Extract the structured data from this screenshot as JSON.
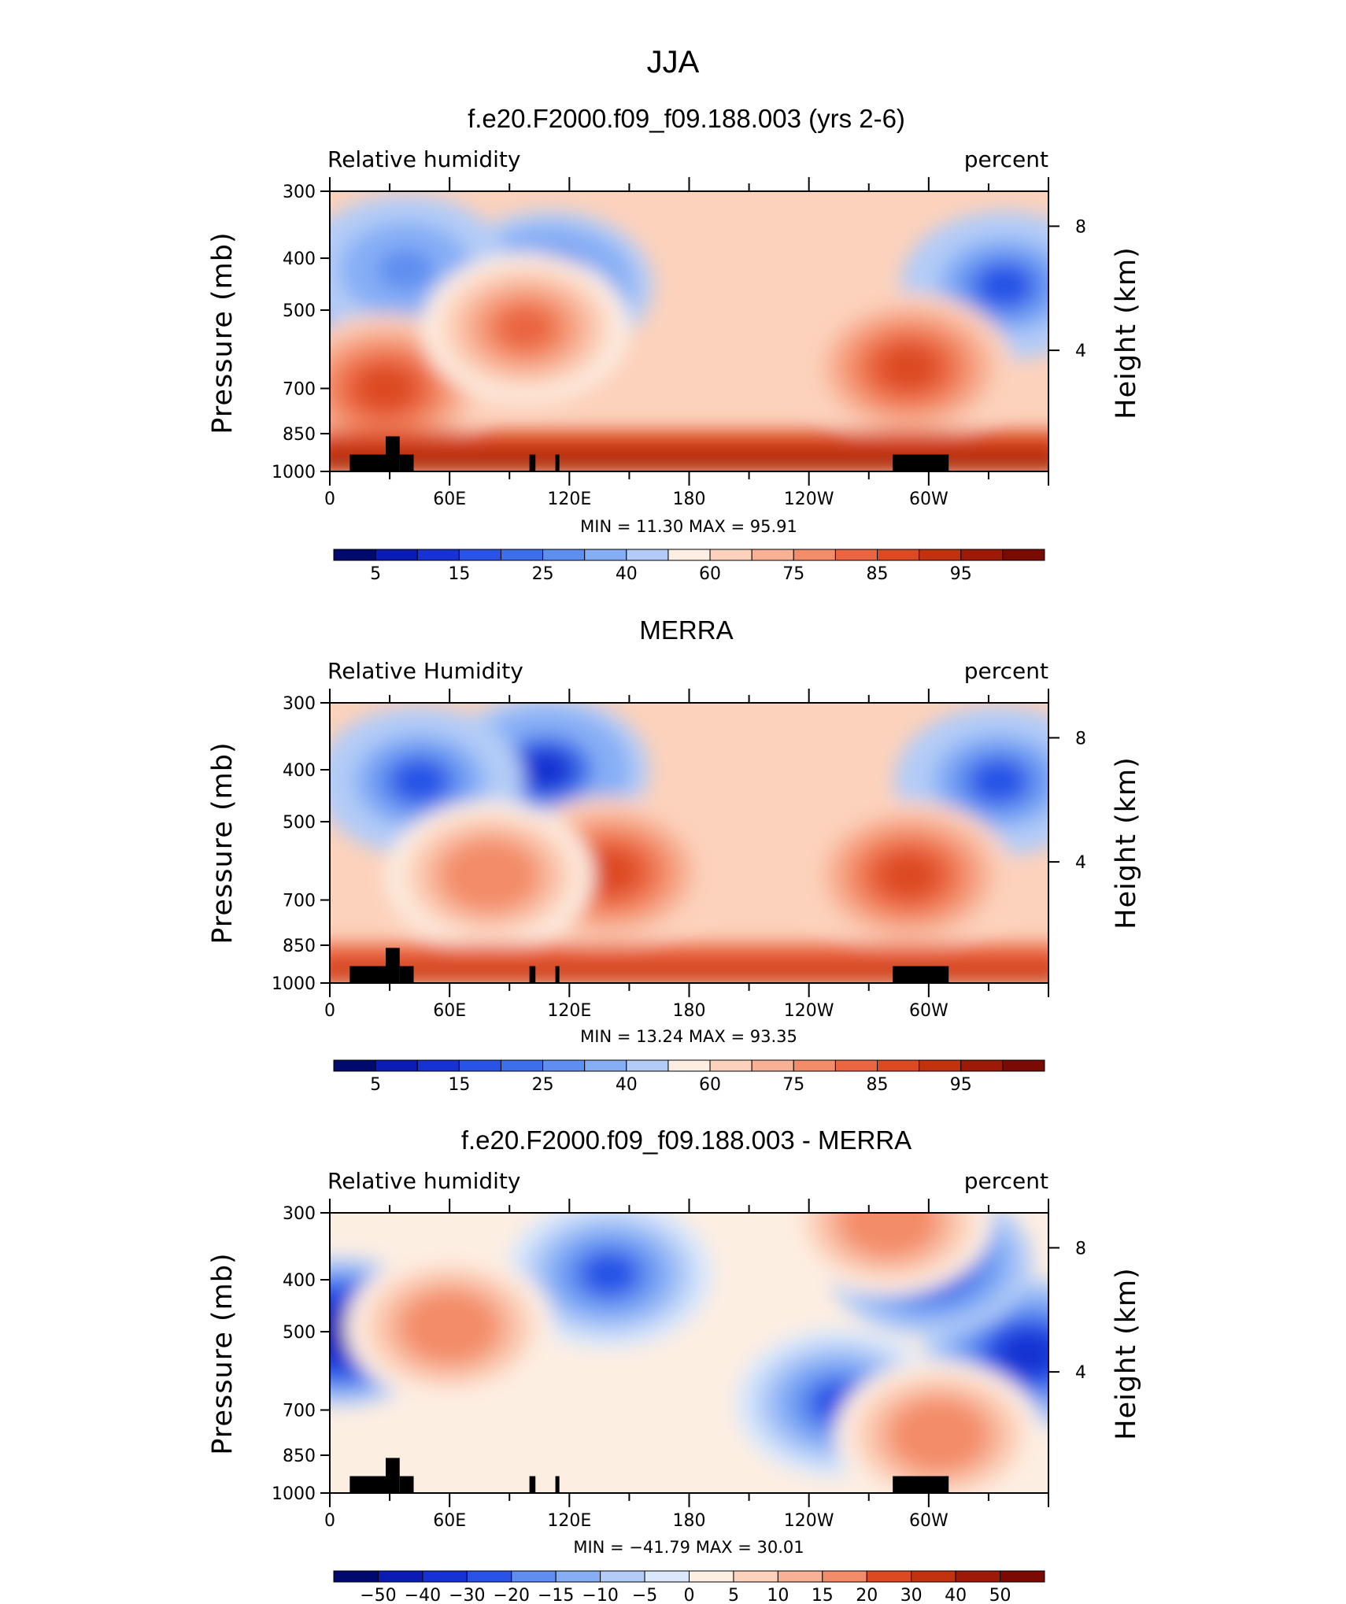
{
  "figure": {
    "title": "JJA",
    "colors": {
      "cold": [
        "#000a6e",
        "#0a1cb4",
        "#1732d2",
        "#2853e6",
        "#3e6fea",
        "#5e8ef0",
        "#86aef5",
        "#b3ccf7",
        "#dbe8fb"
      ],
      "warm": [
        "#fdeee2",
        "#fcd2bc",
        "#f8b195",
        "#f38c68",
        "#ea6540",
        "#dc4a22",
        "#c2320f",
        "#9c1a06",
        "#7a0a02"
      ]
    }
  },
  "chart_data": [
    {
      "type": "heatmap",
      "title": "f.e20.F2000.f09_f09.188.003 (yrs 2-6)",
      "left_label": "Relative  humidity",
      "right_label": "percent",
      "ylabel": "Pressure (mb)",
      "ylabel_right": "Height (km)",
      "x_ticks": [
        "0",
        "60E",
        "120E",
        "180",
        "120W",
        "60W"
      ],
      "y_ticks": [
        "300",
        "400",
        "500",
        "700",
        "850",
        "1000"
      ],
      "y_ticks_right": [
        "8",
        "4"
      ],
      "ylim": [
        1000,
        300
      ],
      "min_label": "MIN =   11.30   MAX =   95.91",
      "min": 11.3,
      "max": 95.91,
      "colorbar_labels": [
        "5",
        "15",
        "25",
        "40",
        "60",
        "75",
        "85",
        "95"
      ],
      "colorbar_levels": [
        5,
        10,
        15,
        20,
        25,
        30,
        40,
        50,
        60,
        65,
        70,
        75,
        80,
        85,
        90,
        95
      ],
      "features": [
        {
          "kind": "blob",
          "lon": 110,
          "p": 450,
          "value": 15
        },
        {
          "kind": "blob",
          "lon": 338,
          "p": 450,
          "value": 20
        },
        {
          "kind": "blob",
          "lon": 2,
          "p": 470,
          "value": 25
        },
        {
          "kind": "blob",
          "lon": 38,
          "p": 420,
          "value": 30
        },
        {
          "kind": "blob",
          "lon": 28,
          "p": 700,
          "value": 85
        },
        {
          "kind": "blob",
          "lon": 98,
          "p": 540,
          "value": 80
        },
        {
          "kind": "blob",
          "lon": 290,
          "p": 640,
          "value": 85
        },
        {
          "kind": "band",
          "p": 930,
          "value": 92
        }
      ]
    },
    {
      "type": "heatmap",
      "title": "MERRA",
      "left_label": "Relative  Humidity",
      "right_label": "percent",
      "ylabel": "Pressure (mb)",
      "ylabel_right": "Height (km)",
      "x_ticks": [
        "0",
        "60E",
        "120E",
        "180",
        "120W",
        "60W"
      ],
      "y_ticks": [
        "300",
        "400",
        "500",
        "700",
        "850",
        "1000"
      ],
      "y_ticks_right": [
        "8",
        "4"
      ],
      "ylim": [
        1000,
        300
      ],
      "min_label": "MIN =   13.24   MAX =   93.35",
      "min": 13.24,
      "max": 93.35,
      "colorbar_labels": [
        "5",
        "15",
        "25",
        "40",
        "60",
        "75",
        "85",
        "95"
      ],
      "colorbar_levels": [
        5,
        10,
        15,
        20,
        25,
        30,
        40,
        50,
        60,
        65,
        70,
        75,
        80,
        85,
        90,
        95
      ],
      "features": [
        {
          "kind": "blob",
          "lon": 108,
          "p": 400,
          "value": 15
        },
        {
          "kind": "blob",
          "lon": 335,
          "p": 420,
          "value": 20
        },
        {
          "kind": "blob",
          "lon": 45,
          "p": 420,
          "value": 20
        },
        {
          "kind": "blob",
          "lon": 140,
          "p": 620,
          "value": 85
        },
        {
          "kind": "blob",
          "lon": 80,
          "p": 630,
          "value": 75
        },
        {
          "kind": "blob",
          "lon": 290,
          "p": 630,
          "value": 85
        },
        {
          "kind": "band",
          "p": 935,
          "value": 90
        }
      ]
    },
    {
      "type": "heatmap",
      "title": "f.e20.F2000.f09_f09.188.003 - MERRA",
      "left_label": "Relative  humidity",
      "right_label": "percent",
      "ylabel": "Pressure (mb)",
      "ylabel_right": "Height (km)",
      "x_ticks": [
        "0",
        "60E",
        "120E",
        "180",
        "120W",
        "60W"
      ],
      "y_ticks": [
        "300",
        "400",
        "500",
        "700",
        "850",
        "1000"
      ],
      "y_ticks_right": [
        "8",
        "4"
      ],
      "ylim": [
        1000,
        300
      ],
      "min_label": "MIN = −41.79   MAX =   30.01",
      "min": -41.79,
      "max": 30.01,
      "colorbar_labels": [
        "−50",
        "−40",
        "−30",
        "−20",
        "−15",
        "−10",
        "−5",
        "0",
        "5",
        "10",
        "15",
        "20",
        "30",
        "40",
        "50"
      ],
      "colorbar_levels": [
        -50,
        -40,
        -30,
        -20,
        -15,
        -10,
        -5,
        0,
        5,
        10,
        15,
        20,
        30,
        40,
        50
      ],
      "features": [
        {
          "kind": "blob",
          "lon": 5,
          "p": 500,
          "value": -40
        },
        {
          "kind": "blob",
          "lon": 350,
          "p": 550,
          "value": -30
        },
        {
          "kind": "blob",
          "lon": 300,
          "p": 370,
          "value": -25
        },
        {
          "kind": "blob",
          "lon": 140,
          "p": 390,
          "value": -20
        },
        {
          "kind": "blob",
          "lon": 255,
          "p": 680,
          "value": -20
        },
        {
          "kind": "blob",
          "lon": 60,
          "p": 490,
          "value": 20
        },
        {
          "kind": "blob",
          "lon": 280,
          "p": 310,
          "value": 20
        },
        {
          "kind": "blob",
          "lon": 305,
          "p": 780,
          "value": 20
        }
      ]
    }
  ]
}
